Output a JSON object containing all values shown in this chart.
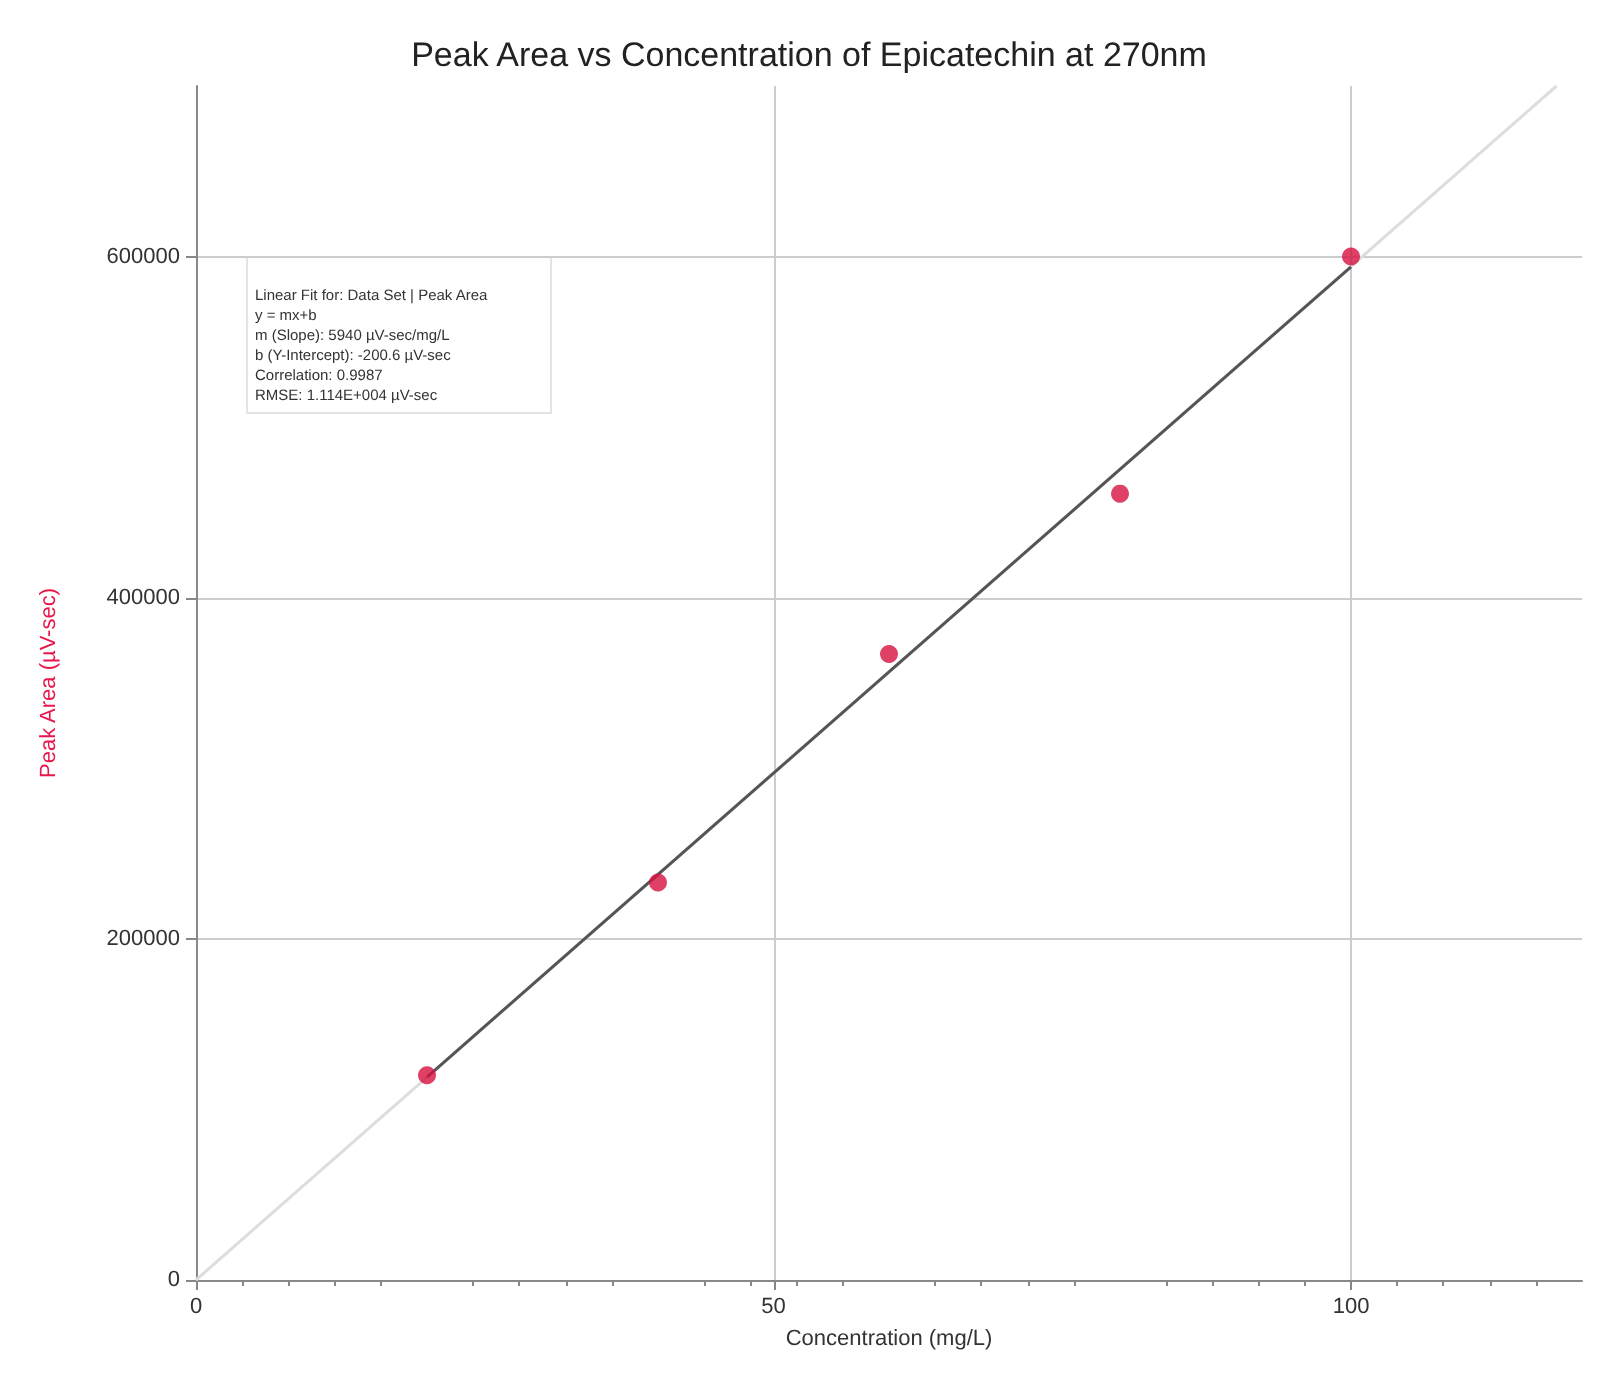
{
  "chart_data": {
    "type": "scatter",
    "title": "Peak Area vs Concentration of Epicatechin at 270nm",
    "xlabel": "Concentration (mg/L)",
    "ylabel": "Peak Area (µV-sec)",
    "xlim": [
      0,
      120
    ],
    "xticks": [
      0,
      50,
      100
    ],
    "ylim": [
      0,
      700000
    ],
    "yticks": [
      0,
      200000,
      400000,
      600000
    ],
    "grid": true,
    "marker": "circle",
    "series": [
      {
        "type": "line",
        "marker": "none",
        "color": "#dddddd",
        "x": [
          0,
          117.8
        ],
        "values": [
          0,
          700000
        ]
      },
      {
        "type": "line",
        "marker": "none",
        "color": "#555555",
        "x": [
          20,
          100
        ],
        "values": [
          119000,
          594000
        ]
      },
      {
        "color": "#d6123e",
        "x": [
          20,
          40,
          60,
          80,
          100
        ],
        "values": [
          120000,
          233000,
          367000,
          461000,
          600000
        ]
      }
    ],
    "annotations": [
      "Linear Fit for: Data Set | Peak Area",
      "y = mx+b",
      "m (Slope): 5940 µV-sec/mg/L",
      "b (Y-Intercept): -200.6 µV-sec",
      "Correlation: 0.9987",
      "RMSE: 1.114E+004 µV-sec"
    ]
  }
}
